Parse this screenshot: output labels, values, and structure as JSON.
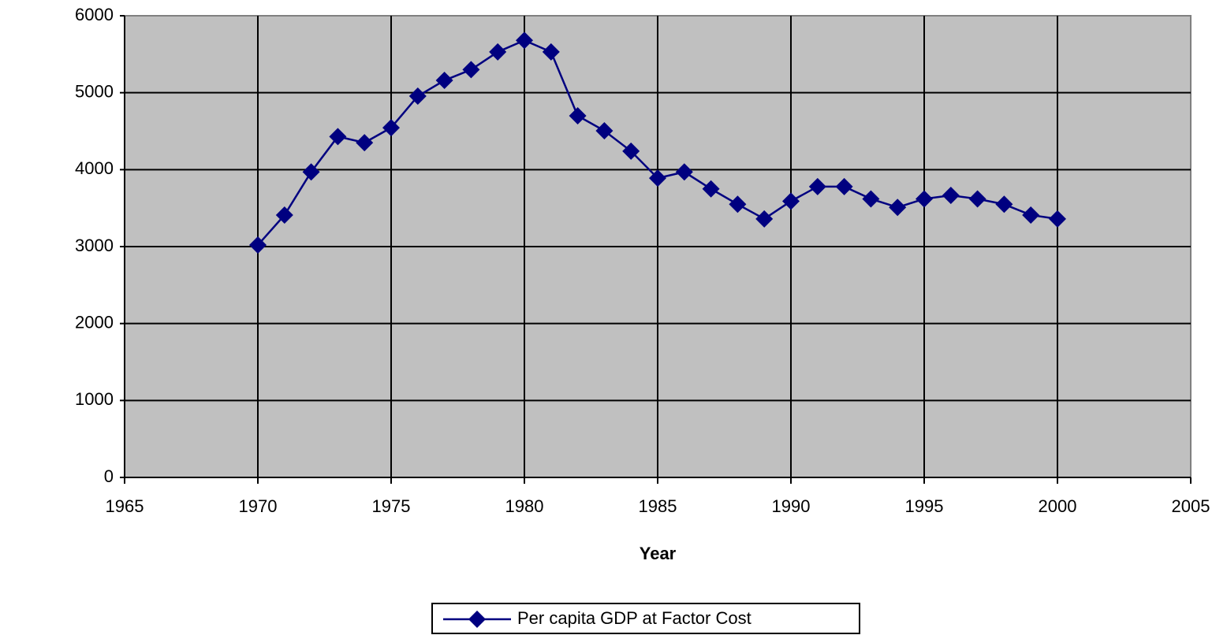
{
  "chart_data": {
    "type": "line",
    "x_label": "Year",
    "x": [
      1970,
      1971,
      1972,
      1973,
      1974,
      1975,
      1976,
      1977,
      1978,
      1979,
      1980,
      1981,
      1982,
      1983,
      1984,
      1985,
      1986,
      1987,
      1988,
      1989,
      1990,
      1991,
      1992,
      1993,
      1994,
      1995,
      1996,
      1997,
      1998,
      1999,
      2000
    ],
    "series": [
      {
        "name": "Per capita GDP at Factor Cost",
        "color": "#000080",
        "values": [
          3020,
          3410,
          3970,
          4430,
          4350,
          4545,
          4955,
          5160,
          5300,
          5530,
          5680,
          5530,
          4700,
          4505,
          4240,
          3890,
          3970,
          3750,
          3550,
          3360,
          3590,
          3780,
          3780,
          3620,
          3510,
          3620,
          3665,
          3620,
          3550,
          3410,
          3360
        ]
      }
    ],
    "xlim": [
      1965,
      2005
    ],
    "xticks": [
      1965,
      1970,
      1975,
      1980,
      1985,
      1990,
      1995,
      2000,
      2005
    ],
    "ylim": [
      0,
      6000
    ],
    "yticks": [
      0,
      1000,
      2000,
      3000,
      4000,
      5000,
      6000
    ],
    "grid": true,
    "legend": "bottom",
    "plot_background": "#c0c0c0"
  }
}
